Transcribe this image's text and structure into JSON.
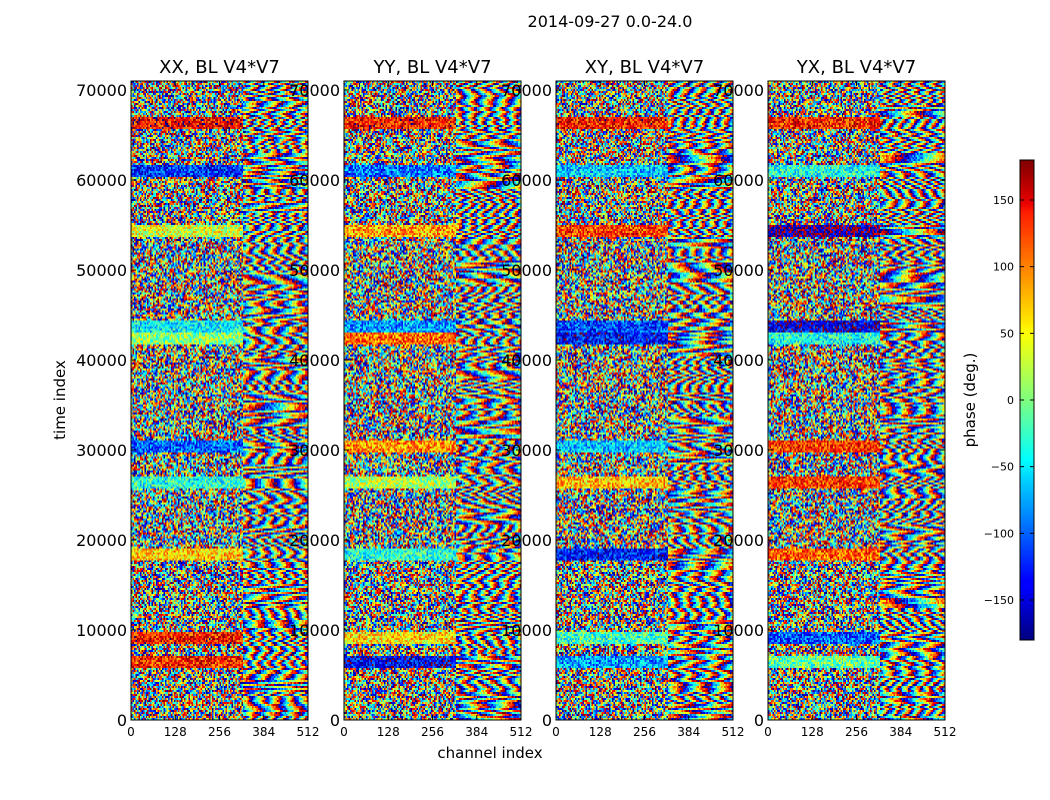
{
  "figure": {
    "suptitle": "2014-09-27 0.0-24.0",
    "xlabel": "channel index",
    "ylabel": "time index"
  },
  "chart_data": [
    {
      "type": "heatmap",
      "title": "XX, BL V4*V7",
      "xlabel": "channel index",
      "ylabel": "time index",
      "xlim": [
        0,
        512
      ],
      "ylim": [
        0,
        71000
      ],
      "xticks": [
        "0",
        "128",
        "256",
        "384",
        "512"
      ],
      "yticks": [
        "0",
        "10000",
        "20000",
        "30000",
        "40000",
        "50000",
        "60000",
        "70000"
      ]
    },
    {
      "type": "heatmap",
      "title": "YY, BL V4*V7",
      "xlim": [
        0,
        512
      ],
      "ylim": [
        0,
        71000
      ],
      "xticks": [
        "0",
        "128",
        "256",
        "384",
        "512"
      ],
      "yticks": [
        "0",
        "10000",
        "20000",
        "30000",
        "40000",
        "50000",
        "60000",
        "70000"
      ]
    },
    {
      "type": "heatmap",
      "title": "XY, BL V4*V7",
      "xlim": [
        0,
        512
      ],
      "ylim": [
        0,
        71000
      ],
      "xticks": [
        "0",
        "128",
        "256",
        "384",
        "512"
      ],
      "yticks": [
        "0",
        "10000",
        "20000",
        "30000",
        "40000",
        "50000",
        "60000",
        "70000"
      ]
    },
    {
      "type": "heatmap",
      "title": "YX, BL V4*V7",
      "xlim": [
        0,
        512
      ],
      "ylim": [
        0,
        71000
      ],
      "xticks": [
        "0",
        "128",
        "256",
        "384",
        "512"
      ],
      "yticks": [
        "0",
        "10000",
        "20000",
        "30000",
        "40000",
        "50000",
        "60000",
        "70000"
      ]
    },
    {
      "type": "colorbar",
      "label": "phase (deg.)",
      "colormap": "jet",
      "range": [
        -180,
        180
      ],
      "ticks": [
        150,
        100,
        50,
        0,
        -50,
        -100,
        -150
      ],
      "tick_labels": [
        "150",
        "100",
        "50",
        "0",
        "−50",
        "−100",
        "−150"
      ]
    }
  ]
}
